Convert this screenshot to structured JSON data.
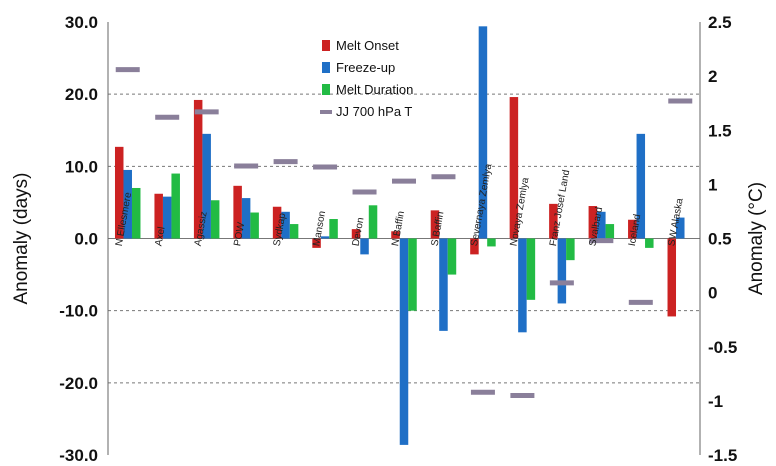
{
  "chart_data": {
    "type": "bar",
    "categories": [
      "N Ellesmere",
      "Axel",
      "Agassiz",
      "POW",
      "Sydkap",
      "Manson",
      "Devon",
      "N Baffin",
      "S Baffin",
      "Severnaya Zemlya",
      "Novaya Zemlya",
      "Franz Josef Land",
      "Svalbard",
      "Iceland",
      "SW Alaska"
    ],
    "series": [
      {
        "name": "Melt Onset",
        "color": "#cc2222",
        "axis": "left",
        "values": [
          12.7,
          6.2,
          19.2,
          7.3,
          4.4,
          -1.3,
          1.3,
          1.0,
          3.9,
          -2.2,
          19.6,
          4.8,
          4.5,
          2.6,
          -10.8
        ]
      },
      {
        "name": "Freeze-up",
        "color": "#1f6fc6",
        "axis": "left",
        "values": [
          9.5,
          5.8,
          14.5,
          5.6,
          3.7,
          0.3,
          -2.2,
          -28.6,
          -12.8,
          29.4,
          -13.0,
          -9.0,
          3.7,
          14.5,
          2.9
        ]
      },
      {
        "name": "Melt Duration",
        "color": "#22bb44",
        "axis": "left",
        "values": [
          7.0,
          9.0,
          5.3,
          3.6,
          2.0,
          2.7,
          4.6,
          -10.0,
          -5.0,
          -1.1,
          -8.5,
          -3.0,
          2.0,
          -1.3,
          0.0
        ]
      },
      {
        "name": "JJ 700 hPa T",
        "color": "#8a7f9a",
        "axis": "right",
        "style": "dash",
        "values": [
          2.06,
          1.62,
          1.67,
          1.17,
          1.21,
          1.16,
          0.93,
          1.03,
          1.07,
          -0.92,
          -0.95,
          0.09,
          0.48,
          -0.09,
          1.77
        ]
      }
    ],
    "yleft": {
      "label": "Anomaly (days)",
      "ylim": [
        -30,
        30
      ],
      "ticks": [
        "30.0",
        "20.0",
        "10.0",
        "0.0",
        "-10.0",
        "-20.0",
        "-30.0"
      ]
    },
    "yright": {
      "label": "Anomaly (°C)",
      "ylim": [
        -1.5,
        2.5
      ],
      "ticks": [
        "2.5",
        "2",
        "1.5",
        "1",
        "0.5",
        "0",
        "-0.5",
        "-1",
        "-1.5"
      ]
    },
    "grid": "dashed horizontal",
    "legend_position": "top-center"
  }
}
